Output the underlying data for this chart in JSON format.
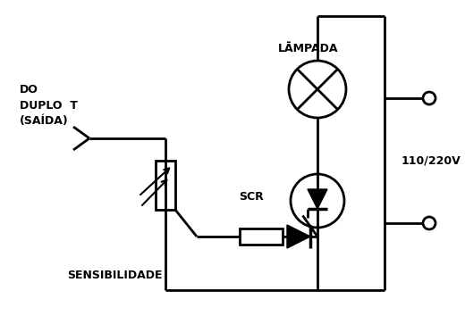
{
  "bg_color": "#ffffff",
  "line_color": "#000000",
  "line_width": 2.0,
  "labels": {
    "lampada": "LĀMPADA",
    "scr": "SCR",
    "sensibilidade": "SENSIBILIDADE",
    "duplo_t": "DO\nDUPLO  T\n(SAÍDA)",
    "voltage": "110/220V"
  },
  "font_size": 9
}
